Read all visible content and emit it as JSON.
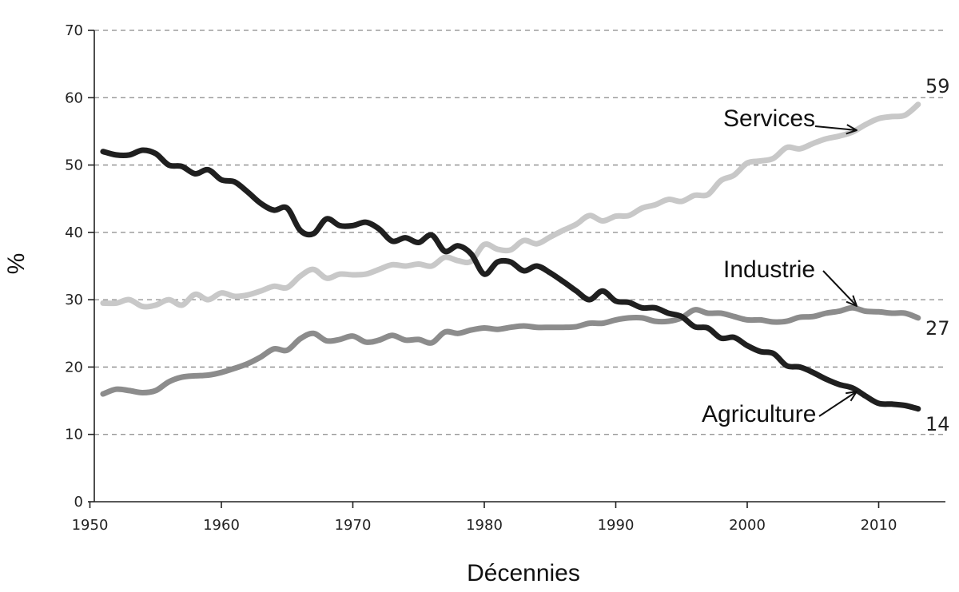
{
  "chart_data": {
    "type": "line",
    "title": "",
    "xlabel": "Décennies",
    "ylabel": "%",
    "xlim": [
      1950,
      2015
    ],
    "ylim": [
      0,
      70
    ],
    "grid": true,
    "x_ticks": [
      1950,
      1960,
      1970,
      1980,
      1990,
      2000,
      2010
    ],
    "y_ticks": [
      0,
      10,
      20,
      30,
      40,
      50,
      60,
      70
    ],
    "x": [
      1951,
      1952,
      1953,
      1954,
      1955,
      1956,
      1957,
      1958,
      1959,
      1960,
      1961,
      1962,
      1963,
      1964,
      1965,
      1966,
      1967,
      1968,
      1969,
      1970,
      1971,
      1972,
      1973,
      1974,
      1975,
      1976,
      1977,
      1978,
      1979,
      1980,
      1981,
      1982,
      1983,
      1984,
      1985,
      1986,
      1987,
      1988,
      1989,
      1990,
      1991,
      1992,
      1993,
      1994,
      1995,
      1996,
      1997,
      1998,
      1999,
      2000,
      2001,
      2002,
      2003,
      2004,
      2005,
      2006,
      2007,
      2008,
      2009,
      2010,
      2011,
      2012,
      2013
    ],
    "series": [
      {
        "name": "Agriculture",
        "color": "#1f1f1f",
        "end_label": "14",
        "values": [
          52,
          51.5,
          51.5,
          52.2,
          51.7,
          50,
          49.8,
          48.7,
          49.3,
          47.8,
          47.5,
          46,
          44.3,
          43.3,
          43.6,
          40.3,
          39.8,
          42,
          41,
          41,
          41.5,
          40.5,
          38.7,
          39.2,
          38.5,
          39.6,
          37.2,
          38,
          36.8,
          33.8,
          35.6,
          35.6,
          34.3,
          35,
          34,
          32.7,
          31.3,
          30,
          31.3,
          29.8,
          29.6,
          28.8,
          28.8,
          28,
          27.5,
          26,
          25.8,
          24.3,
          24.4,
          23.2,
          22.3,
          22,
          20.2,
          20,
          19.2,
          18.2,
          17.4,
          16.9,
          15.7,
          14.6,
          14.5,
          14.3,
          13.8
        ]
      },
      {
        "name": "Industrie",
        "color": "#8c8c8c",
        "end_label": "27",
        "values": [
          16,
          16.7,
          16.5,
          16.2,
          16.5,
          17.8,
          18.5,
          18.7,
          18.8,
          19.2,
          19.8,
          20.5,
          21.5,
          22.7,
          22.5,
          24.2,
          25,
          23.9,
          24.1,
          24.6,
          23.7,
          24,
          24.7,
          24,
          24.1,
          23.6,
          25.2,
          25,
          25.5,
          25.8,
          25.6,
          25.9,
          26.1,
          25.9,
          25.9,
          25.9,
          26,
          26.5,
          26.5,
          27,
          27.3,
          27.3,
          26.8,
          26.8,
          27.3,
          28.5,
          28,
          28,
          27.5,
          27,
          27,
          26.7,
          26.8,
          27.4,
          27.5,
          28,
          28.3,
          28.8,
          28.3,
          28.2,
          28,
          28,
          27.3
        ]
      },
      {
        "name": "Services",
        "color": "#c8c8c8",
        "end_label": "59",
        "values": [
          29.5,
          29.5,
          30,
          29,
          29.2,
          30,
          29.2,
          30.8,
          30,
          31,
          30.5,
          30.7,
          31.3,
          32,
          31.8,
          33.5,
          34.5,
          33.2,
          33.8,
          33.7,
          33.8,
          34.5,
          35.2,
          35,
          35.3,
          35,
          36.3,
          35.8,
          35.7,
          38.2,
          37.5,
          37.4,
          38.8,
          38.3,
          39.3,
          40.3,
          41.2,
          42.5,
          41.7,
          42.4,
          42.5,
          43.6,
          44.1,
          44.9,
          44.6,
          45.5,
          45.6,
          47.7,
          48.5,
          50.3,
          50.6,
          51,
          52.6,
          52.4,
          53.2,
          53.9,
          54.3,
          54.9,
          56,
          56.9,
          57.2,
          57.4,
          59
        ]
      }
    ]
  }
}
